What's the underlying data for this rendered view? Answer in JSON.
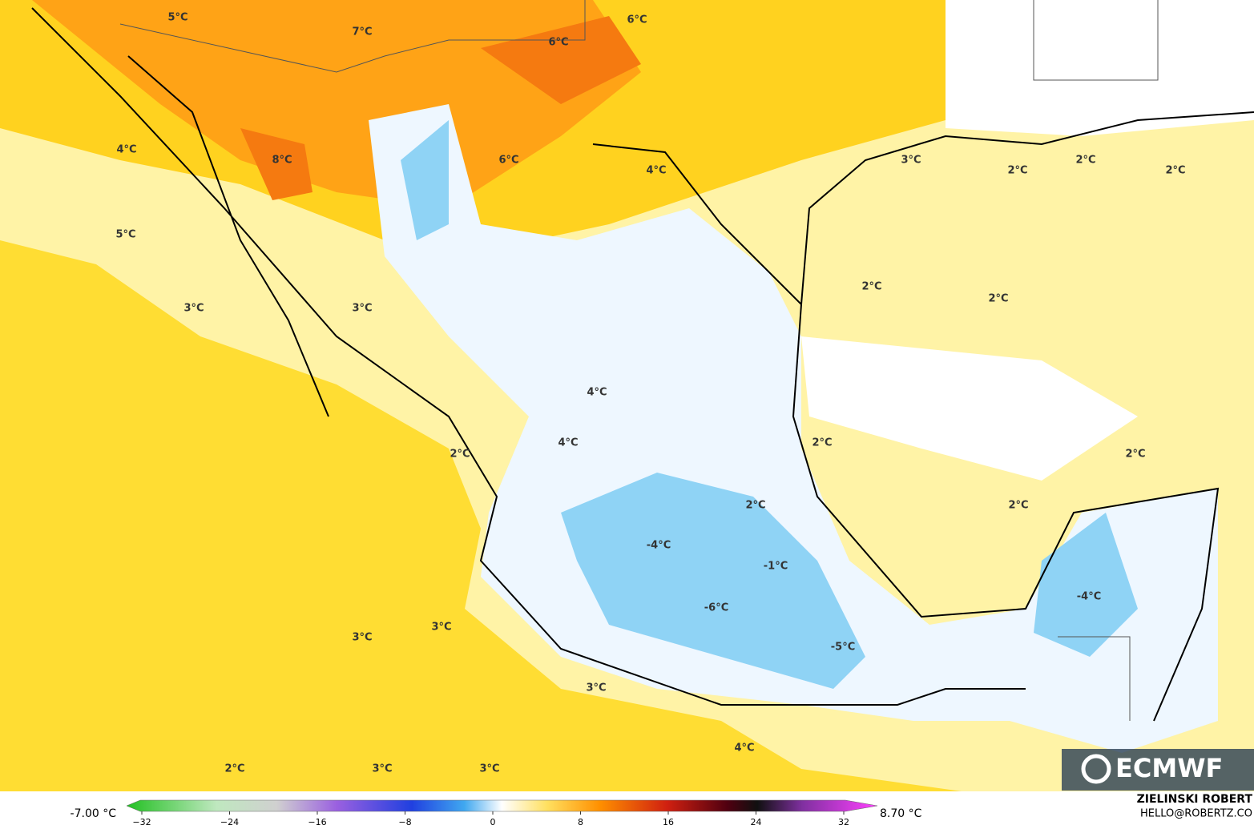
{
  "map": {
    "contour_labels": [
      "5°C",
      "7°C",
      "6°C",
      "6°C",
      "4°C",
      "8°C",
      "6°C",
      "4°C",
      "3°C",
      "2°C",
      "2°C",
      "2°C",
      "5°C",
      "3°C",
      "3°C",
      "2°C",
      "2°C",
      "4°C",
      "4°C",
      "2°C",
      "2°C",
      "2°C",
      "2°C",
      "2°C",
      "-4°C",
      "-1°C",
      "-4°C",
      "-6°C",
      "3°C",
      "-5°C",
      "3°C",
      "3°C",
      "4°C",
      "2°C",
      "3°C",
      "3°C"
    ]
  },
  "colorbar": {
    "min_label": "-7.00 °C",
    "max_label": "8.70 °C",
    "ticks": [
      {
        "value": -32,
        "label": "−32"
      },
      {
        "value": -24,
        "label": "−24"
      },
      {
        "value": -16,
        "label": "−16"
      },
      {
        "value": -8,
        "label": "−8"
      },
      0,
      8,
      16,
      24,
      32
    ]
  },
  "credit": {
    "author": "ZIELINSKI ROBERT",
    "email": "HELLO@ROBERTZ.CO"
  },
  "logo": "ECMWF"
}
